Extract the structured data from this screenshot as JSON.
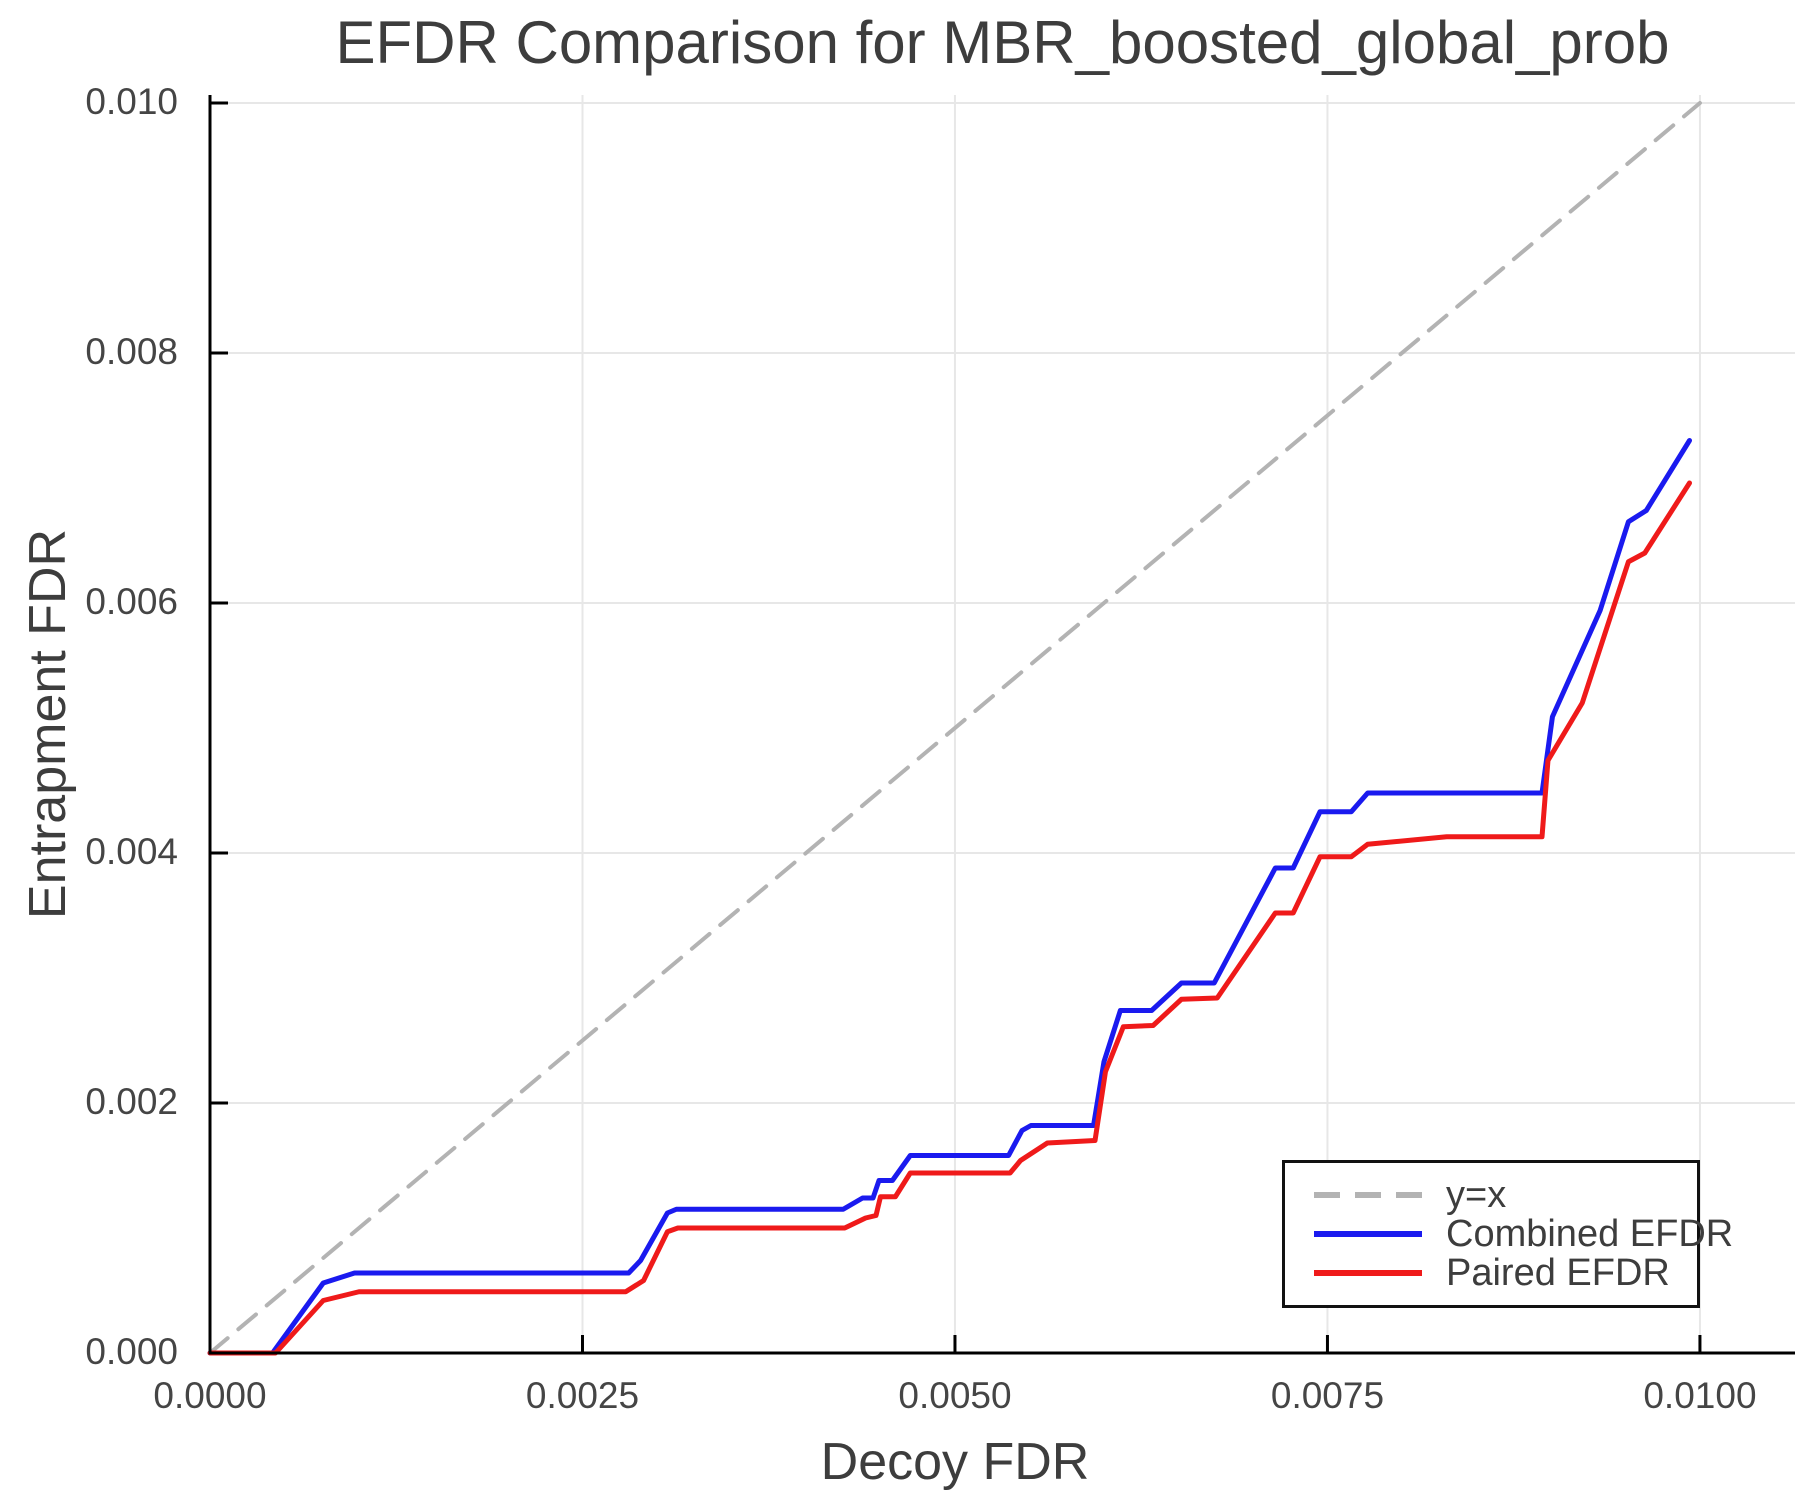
{
  "title": "EFDR Comparison for MBR_boosted_global_prob",
  "axes": {
    "x_label": "Decoy FDR",
    "y_label": "Entrapment FDR",
    "x_ticks": [
      {
        "value": 0.0,
        "label": "0.0000"
      },
      {
        "value": 0.0025,
        "label": "0.0025"
      },
      {
        "value": 0.005,
        "label": "0.0050"
      },
      {
        "value": 0.0075,
        "label": "0.0075"
      },
      {
        "value": 0.01,
        "label": "0.0100"
      }
    ],
    "y_ticks": [
      {
        "value": 0.0,
        "label": "0.000"
      },
      {
        "value": 0.002,
        "label": "0.002"
      },
      {
        "value": 0.004,
        "label": "0.004"
      },
      {
        "value": 0.006,
        "label": "0.006"
      },
      {
        "value": 0.008,
        "label": "0.008"
      },
      {
        "value": 0.01,
        "label": "0.010"
      }
    ],
    "x_range": [
      0,
      0.010638
    ],
    "y_range": [
      0,
      0.010064
    ],
    "grid": true
  },
  "colors": {
    "grid": "#e7e7e7",
    "spine": "#000000",
    "text": "#3d3d3d",
    "diagonal": "#b3b3b3",
    "combined": "#1a1aef",
    "paired": "#ef1a1a",
    "legend_border": "#111111"
  },
  "legend": {
    "position": "lower right",
    "items": [
      {
        "label": "y=x",
        "color": "#b3b3b3",
        "dashed": true
      },
      {
        "label": "Combined EFDR",
        "color": "#1a1aef",
        "dashed": false
      },
      {
        "label": "Paired EFDR",
        "color": "#ef1a1a",
        "dashed": false
      }
    ]
  },
  "chart_data": {
    "type": "line",
    "title": "EFDR Comparison for MBR_boosted_global_prob",
    "xlabel": "Decoy FDR",
    "ylabel": "Entrapment FDR",
    "xlim": [
      0,
      0.0106
    ],
    "ylim": [
      0,
      0.0101
    ],
    "legend_position": "lower right",
    "series": [
      {
        "name": "y=x",
        "color": "#b3b3b3",
        "dashed": true,
        "width": 4,
        "points": [
          [
            0,
            0
          ],
          [
            0.01,
            0.01
          ]
        ]
      },
      {
        "name": "Combined EFDR",
        "color": "#1a1aef",
        "dashed": false,
        "width": 5,
        "points": [
          [
            0.0,
            0.0
          ],
          [
            0.00042,
            0.0
          ],
          [
            0.00076,
            0.00056
          ],
          [
            0.00097,
            0.00064
          ],
          [
            0.00281,
            0.00064
          ],
          [
            0.00289,
            0.00074
          ],
          [
            0.00307,
            0.00112
          ],
          [
            0.00313,
            0.00115
          ],
          [
            0.00425,
            0.00115
          ],
          [
            0.00438,
            0.00124
          ],
          [
            0.00445,
            0.00124
          ],
          [
            0.00449,
            0.00138
          ],
          [
            0.00458,
            0.00138
          ],
          [
            0.0047,
            0.00158
          ],
          [
            0.00536,
            0.00158
          ],
          [
            0.00545,
            0.00178
          ],
          [
            0.00551,
            0.00182
          ],
          [
            0.00593,
            0.00182
          ],
          [
            0.006,
            0.00233
          ],
          [
            0.00611,
            0.00274
          ],
          [
            0.00632,
            0.00274
          ],
          [
            0.00652,
            0.00296
          ],
          [
            0.00674,
            0.00296
          ],
          [
            0.00715,
            0.00388
          ],
          [
            0.00727,
            0.00388
          ],
          [
            0.00745,
            0.00433
          ],
          [
            0.00766,
            0.00433
          ],
          [
            0.00777,
            0.00448
          ],
          [
            0.00894,
            0.00448
          ],
          [
            0.00901,
            0.00509
          ],
          [
            0.00933,
            0.00594
          ],
          [
            0.00952,
            0.00665
          ],
          [
            0.00964,
            0.00674
          ],
          [
            0.00993,
            0.0073
          ]
        ]
      },
      {
        "name": "Paired EFDR",
        "color": "#ef1a1a",
        "dashed": false,
        "width": 5,
        "points": [
          [
            0.0,
            0.0
          ],
          [
            0.00044,
            0.0
          ],
          [
            0.00076,
            0.00042
          ],
          [
            0.001,
            0.00049
          ],
          [
            0.00279,
            0.00049
          ],
          [
            0.00291,
            0.00058
          ],
          [
            0.00307,
            0.00097
          ],
          [
            0.00314,
            0.001
          ],
          [
            0.00426,
            0.001
          ],
          [
            0.0044,
            0.00108
          ],
          [
            0.00447,
            0.0011
          ],
          [
            0.0045,
            0.00125
          ],
          [
            0.0046,
            0.00125
          ],
          [
            0.0047,
            0.00144
          ],
          [
            0.00537,
            0.00144
          ],
          [
            0.00544,
            0.00154
          ],
          [
            0.00562,
            0.00168
          ],
          [
            0.00594,
            0.0017
          ],
          [
            0.00601,
            0.00225
          ],
          [
            0.00613,
            0.00261
          ],
          [
            0.00633,
            0.00262
          ],
          [
            0.00652,
            0.00283
          ],
          [
            0.00676,
            0.00284
          ],
          [
            0.00715,
            0.00352
          ],
          [
            0.00727,
            0.00352
          ],
          [
            0.00745,
            0.00397
          ],
          [
            0.00766,
            0.00397
          ],
          [
            0.00777,
            0.00407
          ],
          [
            0.0083,
            0.00413
          ],
          [
            0.00894,
            0.00413
          ],
          [
            0.00898,
            0.00474
          ],
          [
            0.00921,
            0.0052
          ],
          [
            0.00952,
            0.00633
          ],
          [
            0.00963,
            0.0064
          ],
          [
            0.00993,
            0.00696
          ]
        ]
      }
    ]
  }
}
